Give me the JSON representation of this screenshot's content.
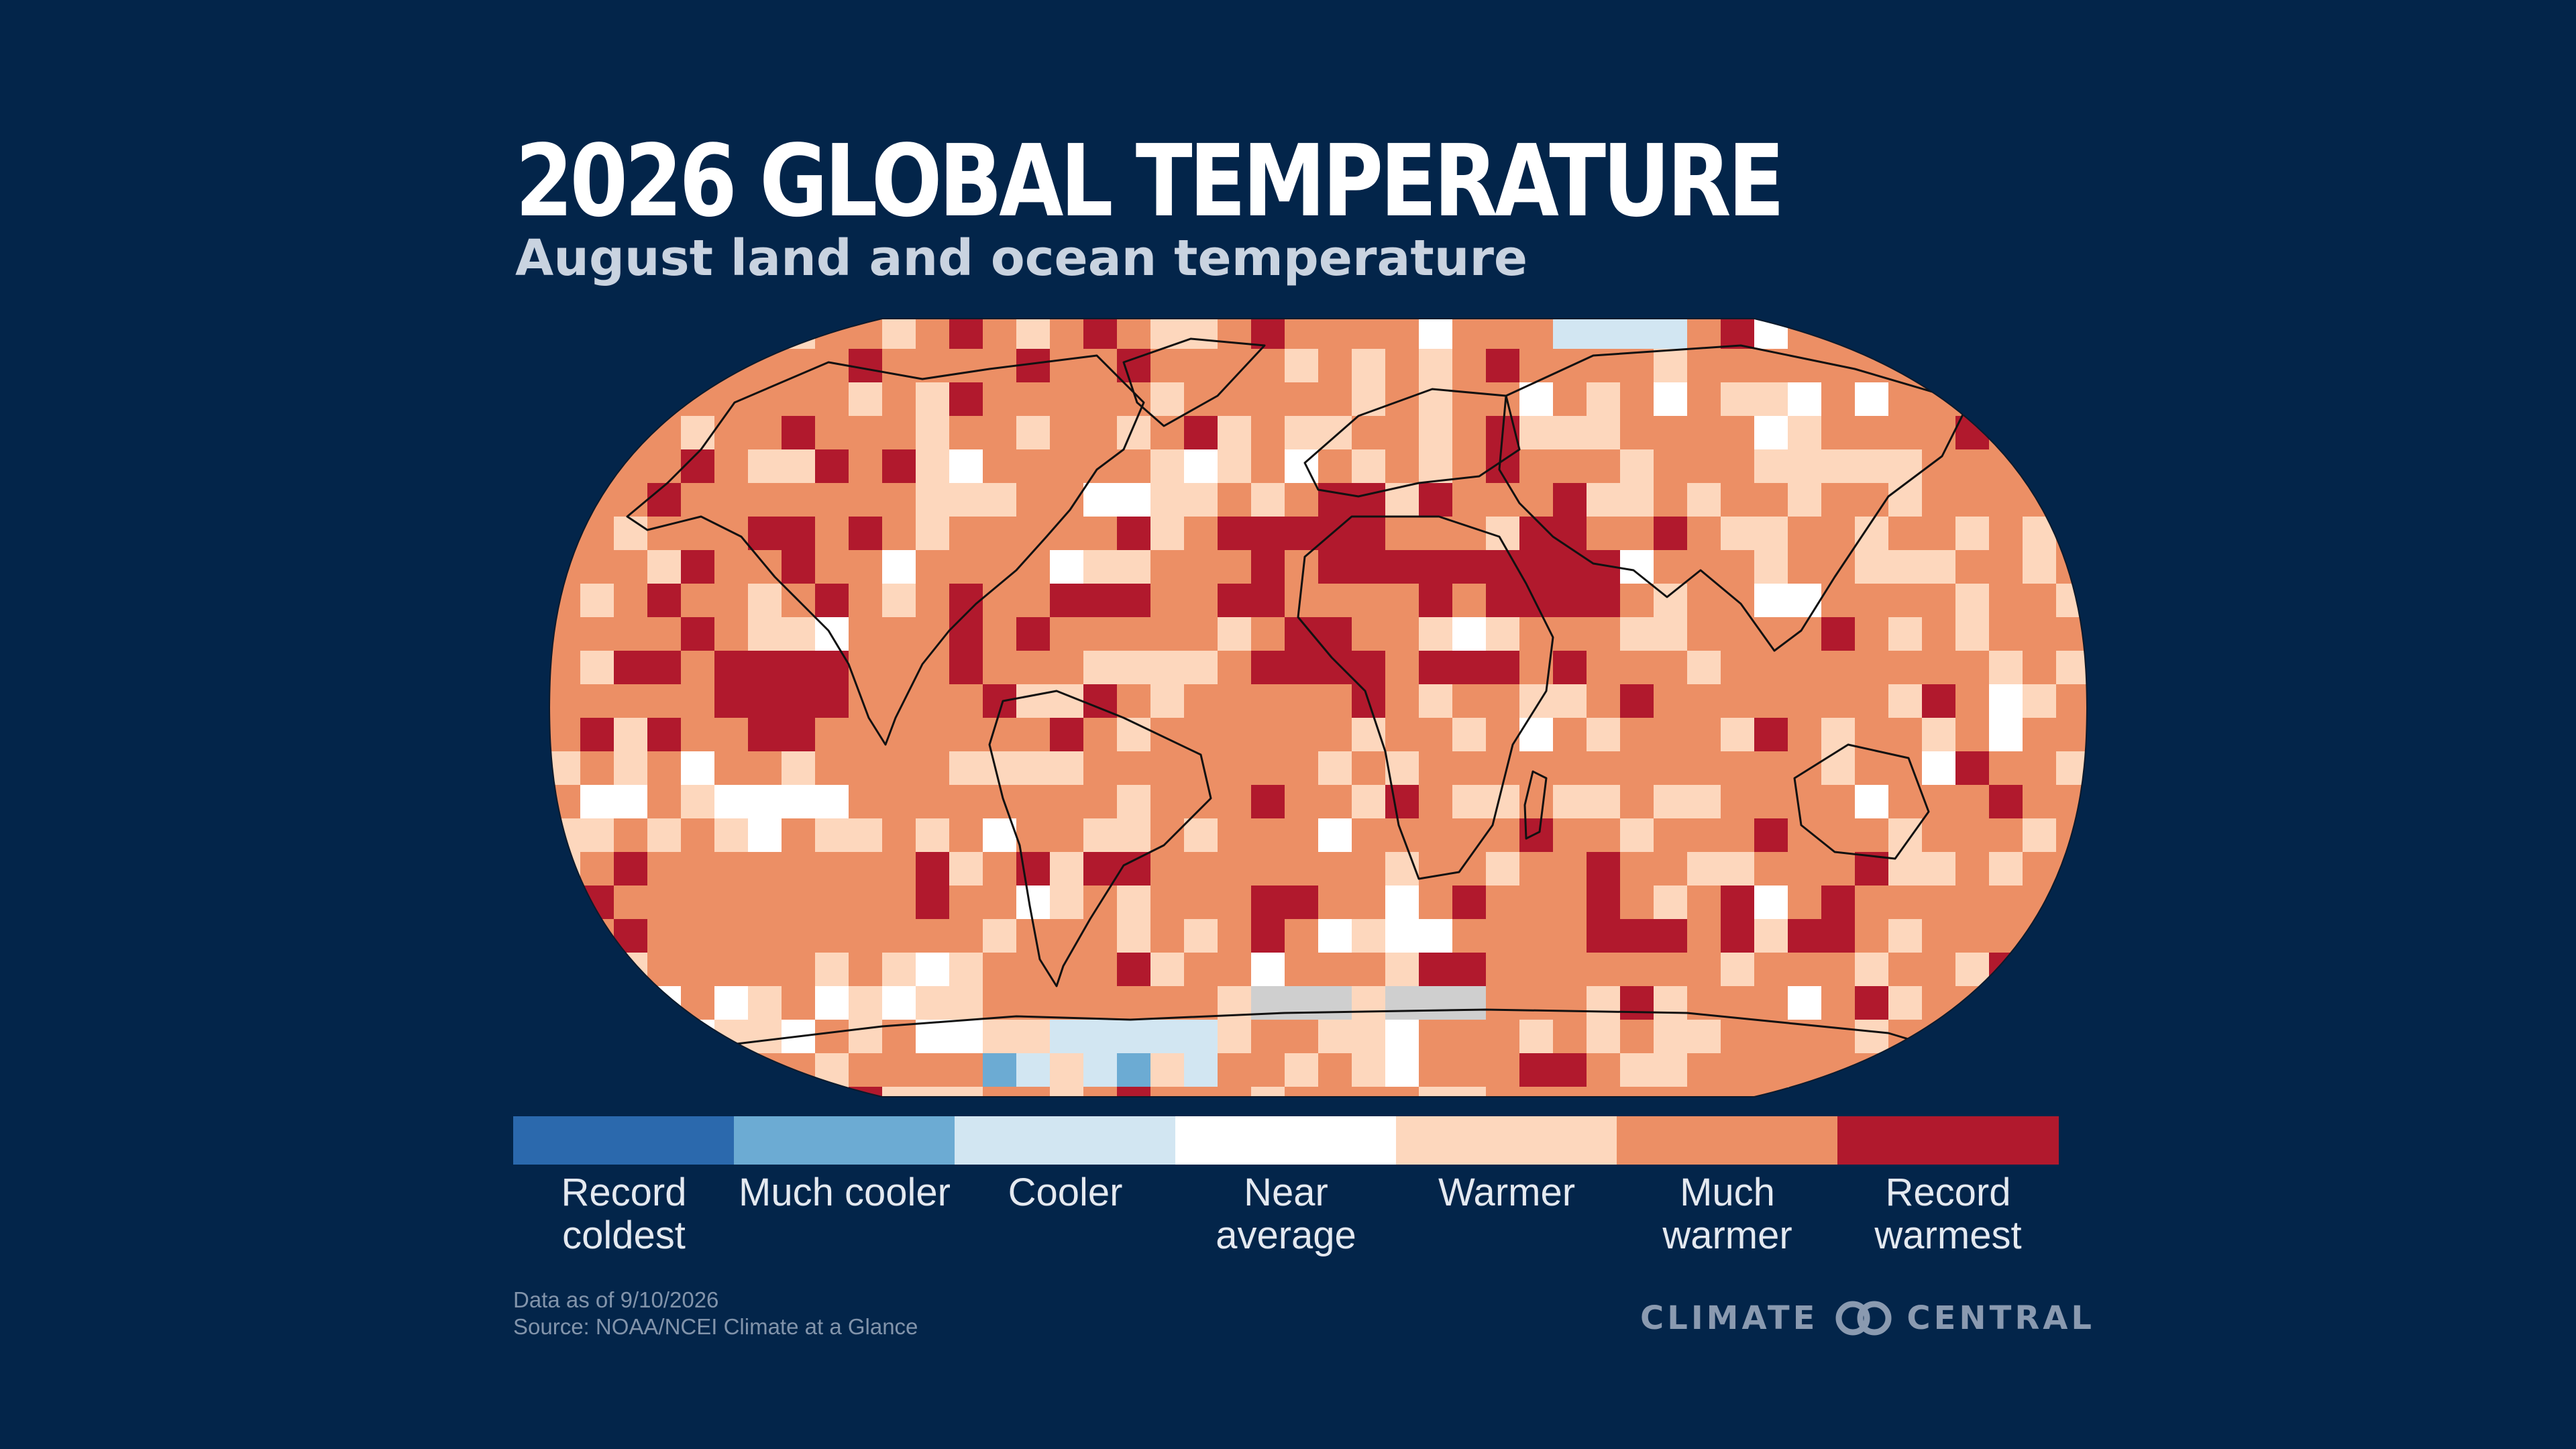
{
  "header": {
    "title": "2026 GLOBAL TEMPERATURE",
    "subtitle": "August land and ocean temperature"
  },
  "legend": {
    "items": [
      {
        "label": "Record coldest",
        "color": "#2b69ad"
      },
      {
        "label": "Much cooler",
        "color": "#6cabd3"
      },
      {
        "label": "Cooler",
        "color": "#d2e6f2"
      },
      {
        "label": "Near average",
        "color": "#ffffff"
      },
      {
        "label": "Warmer",
        "color": "#fdd7bd"
      },
      {
        "label": "Much warmer",
        "color": "#ec8f65"
      },
      {
        "label": "Record warmest",
        "color": "#b1192d"
      }
    ]
  },
  "map": {
    "projection": "robinson",
    "no_data_color": "#cfcfcf",
    "outline_color": "#0f0f0f"
  },
  "footer": {
    "date_note": "Data as of 9/10/2026",
    "source": "Source:  NOAA/NCEI Climate at a Glance",
    "brand": [
      "CLIMATE",
      "CENTRAL"
    ],
    "brand_icon": "interlinked-rings-icon",
    "brand_color": "#8a9ab0"
  }
}
